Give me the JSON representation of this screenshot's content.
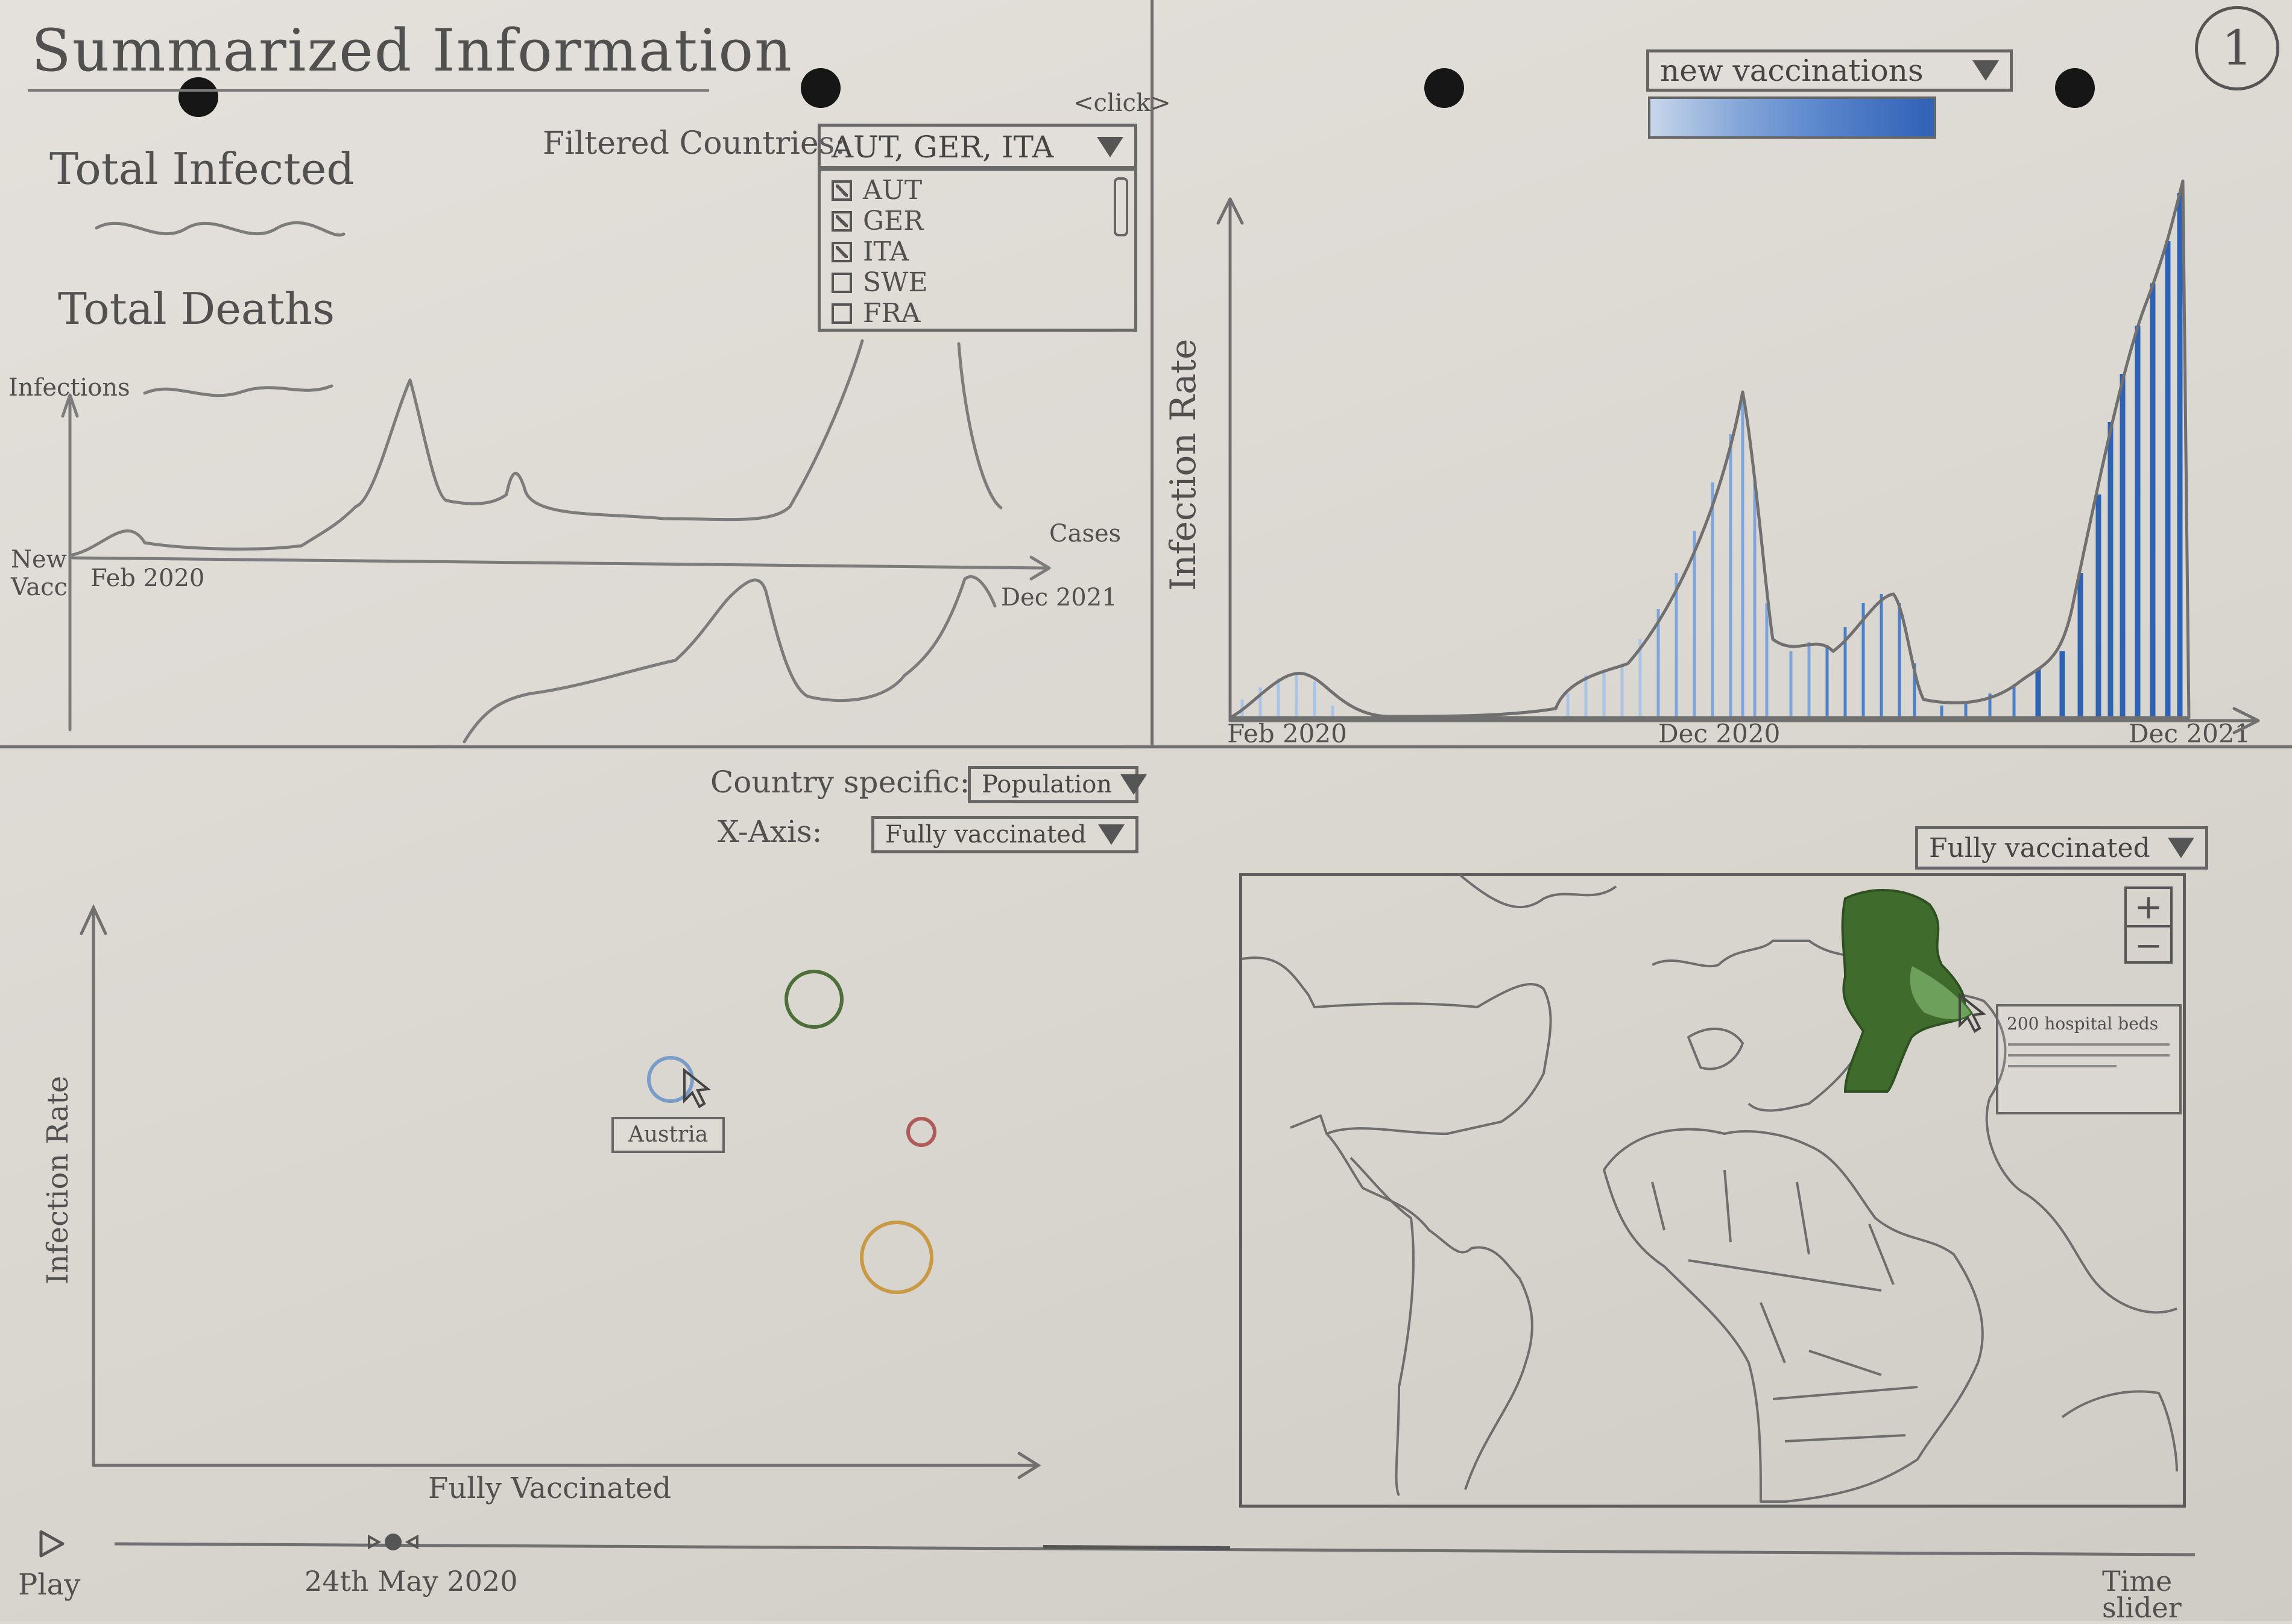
{
  "page_number": "1",
  "title": "Summarized Information",
  "summary": {
    "total_infected_label": "Total Infected",
    "total_deaths_label": "Total Deaths"
  },
  "country_filter": {
    "label": "Filtered Countries:",
    "selected": "AUT, GER, ITA",
    "click_hint": "<click>",
    "options": [
      {
        "code": "AUT",
        "checked": true
      },
      {
        "code": "GER",
        "checked": true
      },
      {
        "code": "ITA",
        "checked": true
      },
      {
        "code": "SWE",
        "checked": false
      },
      {
        "code": "FRA",
        "checked": false
      }
    ]
  },
  "line_chart": {
    "y_label_top": "Infections",
    "y_label_bottom": "New Vacc",
    "x_start": "Feb 2020",
    "x_end": "Dec 2021",
    "x_series_label": "Cases"
  },
  "metric_select": {
    "selected": "new vaccinations",
    "colors": [
      "#a9c4e8",
      "#7ea6dd",
      "#4c7fcb",
      "#2f61b5"
    ]
  },
  "area_chart": {
    "y_label": "Infection Rate",
    "x_ticks": [
      "Feb 2020",
      "Dec 2020",
      "Dec 2021"
    ]
  },
  "scatter": {
    "country_specific_label": "Country specific:",
    "country_specific_value": "Population",
    "x_axis_label": "X-Axis:",
    "x_axis_value": "Fully vaccinated",
    "y_label": "Infection Rate",
    "x_label": "Fully Vaccinated",
    "hover_label": "Austria",
    "bubble_colors": [
      "#4e6f3a",
      "#7a9cc8",
      "#b05a5a",
      "#c99a45"
    ]
  },
  "map": {
    "metric_select": "Fully vaccinated",
    "tooltip_text": "200 hospital beds",
    "zoom_in": "+",
    "zoom_out": "−",
    "highlight_colors": [
      "#3f6b2c",
      "#6da05a"
    ]
  },
  "timeline": {
    "play_label": "Play",
    "current_date": "24th May 2020",
    "slider_label": "Time slider"
  }
}
